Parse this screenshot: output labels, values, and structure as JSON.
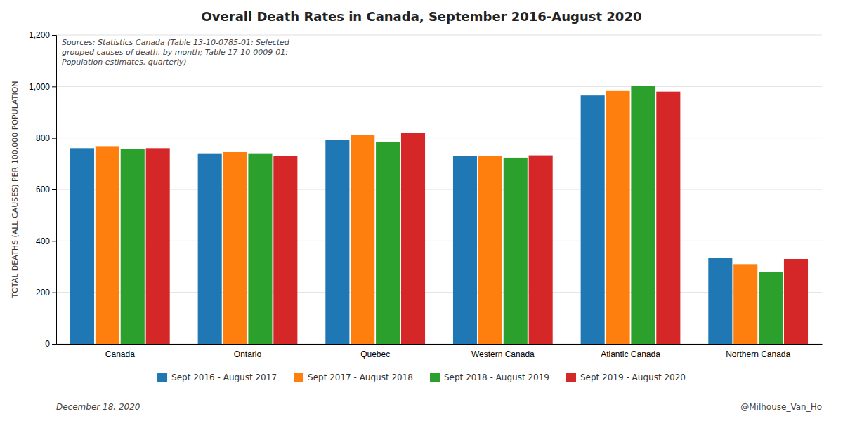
{
  "chart_data": {
    "type": "bar",
    "title": "Overall Death Rates in Canada, September 2016-August 2020",
    "categories": [
      "Canada",
      "Ontario",
      "Quebec",
      "Western Canada",
      "Atlantic Canada",
      "Northern Canada"
    ],
    "series": [
      {
        "name": "Sept 2016 - August 2017",
        "values": [
          760,
          740,
          792,
          730,
          965,
          335
        ]
      },
      {
        "name": "Sept 2017 - August 2018",
        "values": [
          768,
          745,
          810,
          730,
          985,
          310
        ]
      },
      {
        "name": "Sept 2018 - August 2019",
        "values": [
          758,
          740,
          785,
          723,
          1002,
          280
        ]
      },
      {
        "name": "Sept 2019 - August 2020",
        "values": [
          760,
          730,
          820,
          732,
          980,
          330
        ]
      }
    ],
    "ylabel": "TOTAL DEATHS (ALL CAUSES) PER 100,000 POPULATION",
    "ylim": [
      0,
      1200
    ],
    "yticks": [
      0,
      200,
      400,
      600,
      800,
      {
        "value": 1000,
        "label": "1,000"
      },
      {
        "value": 1200,
        "label": "1,200"
      }
    ],
    "grid": true,
    "legend": "bottom",
    "annotations": [
      "Sources: Statistics Canada (Table 13-10-0785-01: Selected\ngrouped causes of death, by month; Table 17-10-0009-01:\nPopulation estimates, quarterly)",
      "December 18, 2020",
      "@Milhouse_Van_Ho"
    ]
  }
}
